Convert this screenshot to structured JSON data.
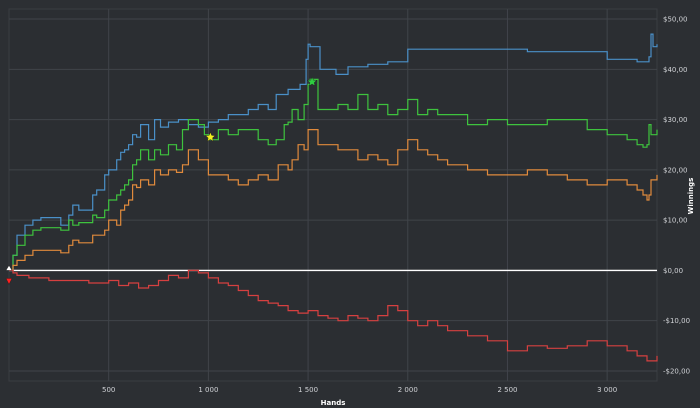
{
  "chart_data": {
    "type": "line",
    "title": "",
    "xlabel": "Hands",
    "ylabel": "Winnings",
    "xlim": [
      0,
      3250
    ],
    "ylim": [
      -22,
      52
    ],
    "grid": true,
    "legend": "none",
    "x_ticks": [
      {
        "value": 500,
        "label": "500"
      },
      {
        "value": 1000,
        "label": "1 000"
      },
      {
        "value": 1500,
        "label": "1 500"
      },
      {
        "value": 2000,
        "label": "2 000"
      },
      {
        "value": 2500,
        "label": "2 500"
      },
      {
        "value": 3000,
        "label": "3 000"
      }
    ],
    "y_ticks": [
      {
        "value": 50,
        "label": "$50,00"
      },
      {
        "value": 40,
        "label": "$40,00"
      },
      {
        "value": 30,
        "label": "$30,00"
      },
      {
        "value": 20,
        "label": "$20,00"
      },
      {
        "value": 10,
        "label": "$10,00"
      },
      {
        "value": 0,
        "label": "$0,00"
      },
      {
        "value": -10,
        "label": "-$10,00"
      },
      {
        "value": -20,
        "label": "-$20,00"
      }
    ],
    "series": [
      {
        "color": "#4a90c8",
        "step": true,
        "x": [
          0,
          20,
          40,
          80,
          120,
          160,
          260,
          300,
          320,
          350,
          420,
          440,
          480,
          500,
          540,
          560,
          580,
          600,
          620,
          640,
          660,
          700,
          730,
          760,
          800,
          850,
          900,
          950,
          1000,
          1050,
          1100,
          1150,
          1200,
          1250,
          1280,
          1300,
          1340,
          1400,
          1440,
          1460,
          1490,
          1500,
          1510,
          1560,
          1600,
          1640,
          1700,
          1800,
          1900,
          2000,
          2200,
          2400,
          2600,
          2800,
          3000,
          3100,
          3150,
          3200,
          3210,
          3220,
          3230,
          3250
        ],
        "y": [
          0,
          3,
          7,
          9,
          10,
          10.5,
          9,
          11,
          13,
          12,
          15,
          16,
          19,
          20,
          22,
          23.5,
          24,
          25,
          27,
          26.5,
          29,
          26,
          30,
          28.5,
          29.5,
          30,
          29,
          28.5,
          29.5,
          30,
          31,
          31,
          32,
          33,
          33,
          32,
          35,
          36,
          36,
          37,
          42,
          45,
          44.5,
          40,
          40,
          39,
          40.5,
          41,
          41.5,
          44,
          44,
          44,
          43.5,
          43.5,
          42,
          42,
          41.5,
          41.5,
          42.5,
          47,
          44.5,
          45
        ]
      },
      {
        "color": "#3ec33e",
        "step": true,
        "x": [
          0,
          20,
          40,
          80,
          120,
          160,
          260,
          300,
          320,
          350,
          420,
          440,
          480,
          500,
          540,
          560,
          580,
          600,
          620,
          640,
          660,
          700,
          730,
          760,
          800,
          840,
          870,
          900,
          950,
          980,
          1000,
          1020,
          1050,
          1100,
          1150,
          1200,
          1250,
          1300,
          1340,
          1380,
          1400,
          1420,
          1450,
          1480,
          1500,
          1510,
          1550,
          1600,
          1650,
          1700,
          1750,
          1800,
          1850,
          1900,
          1950,
          2000,
          2050,
          2100,
          2150,
          2200,
          2300,
          2400,
          2500,
          2600,
          2700,
          2800,
          2900,
          3000,
          3100,
          3150,
          3180,
          3200,
          3210,
          3220,
          3250
        ],
        "y": [
          0,
          3,
          5,
          7,
          8,
          8.5,
          8,
          10,
          9,
          9.5,
          11,
          10.5,
          12,
          14,
          15,
          16,
          17,
          18,
          21,
          22,
          24,
          22,
          24,
          23,
          25,
          24,
          28,
          30,
          29,
          27,
          26,
          26,
          28,
          27,
          28,
          28,
          26,
          25,
          26,
          29,
          29.5,
          32,
          30,
          33,
          37,
          38,
          32,
          32,
          33,
          32,
          35,
          32,
          33,
          31,
          32,
          34,
          31,
          32,
          31,
          31,
          29,
          30,
          29,
          29,
          30,
          30,
          28,
          27,
          26,
          25,
          24.5,
          25,
          29,
          27,
          28
        ]
      },
      {
        "color": "#e08a3c",
        "step": true,
        "x": [
          0,
          20,
          40,
          80,
          120,
          160,
          260,
          300,
          320,
          350,
          420,
          440,
          480,
          500,
          540,
          560,
          580,
          600,
          620,
          640,
          660,
          700,
          730,
          760,
          800,
          840,
          870,
          900,
          950,
          1000,
          1050,
          1100,
          1150,
          1200,
          1250,
          1300,
          1350,
          1400,
          1420,
          1450,
          1480,
          1500,
          1550,
          1600,
          1650,
          1700,
          1750,
          1800,
          1850,
          1900,
          1950,
          2000,
          2050,
          2100,
          2150,
          2200,
          2300,
          2400,
          2500,
          2600,
          2700,
          2800,
          2900,
          3000,
          3100,
          3150,
          3180,
          3200,
          3210,
          3220,
          3250
        ],
        "y": [
          0,
          1,
          2,
          3,
          4,
          4,
          3.5,
          5,
          6,
          5.5,
          7,
          7,
          8,
          10,
          9,
          12,
          13,
          14,
          17,
          16.5,
          18,
          17,
          20,
          19,
          20,
          19.5,
          21,
          24,
          22,
          19,
          19,
          18,
          17,
          18,
          19,
          18,
          21,
          20,
          22,
          25,
          24,
          28,
          25,
          25,
          24,
          24,
          22,
          23,
          22,
          21,
          24,
          26,
          24,
          23,
          22,
          21,
          20,
          19,
          19,
          20,
          19,
          18,
          17,
          18,
          17,
          16,
          15,
          14,
          15,
          18,
          19
        ]
      },
      {
        "color": "#d64040",
        "step": true,
        "x": [
          0,
          20,
          40,
          100,
          200,
          300,
          400,
          500,
          550,
          600,
          650,
          700,
          750,
          800,
          850,
          900,
          950,
          1000,
          1050,
          1100,
          1150,
          1200,
          1250,
          1300,
          1350,
          1400,
          1450,
          1500,
          1550,
          1600,
          1650,
          1700,
          1750,
          1800,
          1850,
          1900,
          1950,
          2000,
          2050,
          2100,
          2150,
          2200,
          2300,
          2400,
          2500,
          2600,
          2700,
          2800,
          2900,
          3000,
          3100,
          3150,
          3200,
          3250
        ],
        "y": [
          0,
          -0.5,
          -1,
          -1.5,
          -2,
          -2,
          -2.5,
          -2,
          -3,
          -2.5,
          -3.5,
          -3,
          -2,
          -1,
          -1.5,
          0,
          -0.5,
          -1.5,
          -2.5,
          -3,
          -4,
          -5,
          -6,
          -6.5,
          -7,
          -8,
          -8.5,
          -8,
          -9,
          -9.5,
          -10,
          -9,
          -9.5,
          -10,
          -9,
          -7,
          -8,
          -10,
          -11,
          -10,
          -11,
          -12,
          -13,
          -14,
          -16,
          -15,
          -15.5,
          -15,
          -14,
          -15,
          -16,
          -17,
          -18,
          -17
        ]
      }
    ],
    "markers": [
      {
        "x": 0,
        "y": -1,
        "color": "#ff2020",
        "shape": "triangle-down"
      },
      {
        "x": 0,
        "y": 0,
        "color": "#ffffff",
        "shape": "triangle-up"
      },
      {
        "x": 1010,
        "y": 26.5,
        "color": "#f0f020",
        "shape": "star"
      },
      {
        "x": 1520,
        "y": 37.5,
        "color": "#2ecc40",
        "shape": "star"
      }
    ],
    "zero_line": {
      "value": 0,
      "color": "#ffffff"
    }
  }
}
